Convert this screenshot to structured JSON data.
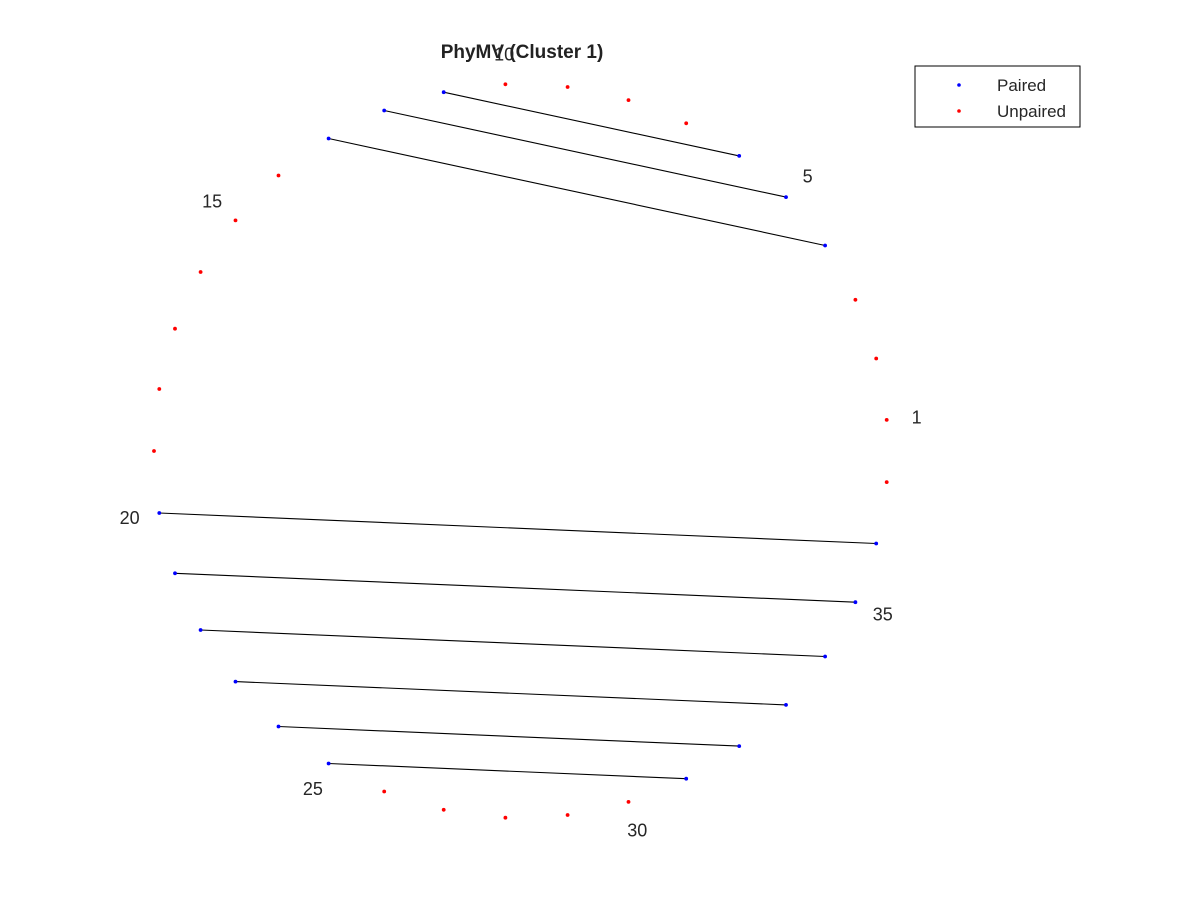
{
  "chart_data": {
    "type": "scatter",
    "title": "PhyMV (Cluster 1)",
    "layout": "circular arc diagram",
    "node_count": 37,
    "node_labels": [
      {
        "index": 1,
        "text": "1"
      },
      {
        "index": 5,
        "text": "5"
      },
      {
        "index": 10,
        "text": "10"
      },
      {
        "index": 15,
        "text": "15"
      },
      {
        "index": 20,
        "text": "20"
      },
      {
        "index": 25,
        "text": "25"
      },
      {
        "index": 30,
        "text": "30"
      },
      {
        "index": 35,
        "text": "35"
      }
    ],
    "series": [
      {
        "name": "Paired",
        "color": "#0000ff",
        "nodes": [
          4,
          5,
          6,
          11,
          12,
          13,
          20,
          21,
          22,
          23,
          24,
          25,
          31,
          32,
          33,
          34,
          35,
          36
        ]
      },
      {
        "name": "Unpaired",
        "color": "#ff0000",
        "nodes": [
          1,
          2,
          3,
          7,
          8,
          9,
          10,
          14,
          15,
          16,
          17,
          18,
          19,
          26,
          27,
          28,
          29,
          30,
          37
        ]
      }
    ],
    "pairs": [
      [
        4,
        13
      ],
      [
        5,
        12
      ],
      [
        6,
        11
      ],
      [
        20,
        36
      ],
      [
        21,
        35
      ],
      [
        22,
        34
      ],
      [
        23,
        33
      ],
      [
        24,
        32
      ],
      [
        25,
        31
      ]
    ],
    "link_color": "#000000",
    "grid": false,
    "legend_position": "top-right",
    "legend": [
      {
        "label": "Paired",
        "color": "#0000ff"
      },
      {
        "label": "Unpaired",
        "color": "#ff0000"
      }
    ]
  }
}
